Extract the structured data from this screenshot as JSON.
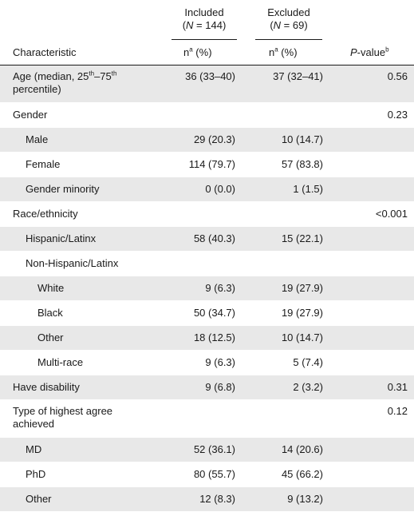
{
  "header": {
    "included_line1": "Included",
    "included_line2": "(N = 144)",
    "excluded_line1": "Excluded",
    "excluded_line2": "(N = 69)",
    "col_characteristic": "Characteristic",
    "col_n_prefix": "n",
    "col_n_sup": "a",
    "col_n_suffix": " (%)",
    "col_p": "P",
    "col_p_suffix": "-value",
    "col_p_sup": "b"
  },
  "rows": [
    {
      "label": "Age (median, 25",
      "sup1": "th",
      "mid": "–75",
      "sup2": "th",
      "label2": "percentile)",
      "inc": "36 (33–40)",
      "exc": "37 (32–41)",
      "p": "0.56",
      "indent": 0,
      "shaded": true,
      "two_line": true
    },
    {
      "label": "Gender",
      "inc": "",
      "exc": "",
      "p": "0.23",
      "indent": 0,
      "shaded": false
    },
    {
      "label": "Male",
      "inc": "29 (20.3)",
      "exc": "10 (14.7)",
      "p": "",
      "indent": 1,
      "shaded": true
    },
    {
      "label": "Female",
      "inc": "114 (79.7)",
      "exc": "57 (83.8)",
      "p": "",
      "indent": 1,
      "shaded": false
    },
    {
      "label": "Gender minority",
      "inc": "0 (0.0)",
      "exc": "1 (1.5)",
      "p": "",
      "indent": 1,
      "shaded": true
    },
    {
      "label": "Race/ethnicity",
      "inc": "",
      "exc": "",
      "p": "<0.001",
      "indent": 0,
      "shaded": false
    },
    {
      "label": "Hispanic/Latinx",
      "inc": "58 (40.3)",
      "exc": "15 (22.1)",
      "p": "",
      "indent": 1,
      "shaded": true
    },
    {
      "label": "Non-Hispanic/Latinx",
      "inc": "",
      "exc": "",
      "p": "",
      "indent": 1,
      "shaded": false
    },
    {
      "label": "White",
      "inc": "9 (6.3)",
      "exc": "19 (27.9)",
      "p": "",
      "indent": 2,
      "shaded": true
    },
    {
      "label": "Black",
      "inc": "50 (34.7)",
      "exc": "19 (27.9)",
      "p": "",
      "indent": 2,
      "shaded": false
    },
    {
      "label": "Other",
      "inc": "18 (12.5)",
      "exc": "10 (14.7)",
      "p": "",
      "indent": 2,
      "shaded": true
    },
    {
      "label": "Multi-race",
      "inc": "9 (6.3)",
      "exc": "5 (7.4)",
      "p": "",
      "indent": 2,
      "shaded": false
    },
    {
      "label": "Have disability",
      "inc": "9 (6.8)",
      "exc": "2 (3.2)",
      "p": "0.31",
      "indent": 0,
      "shaded": true
    },
    {
      "label": "Type of highest agree",
      "label2": "achieved",
      "inc": "",
      "exc": "",
      "p": "0.12",
      "indent": 0,
      "shaded": false,
      "two_line": true
    },
    {
      "label": "MD",
      "inc": "52 (36.1)",
      "exc": "14 (20.6)",
      "p": "",
      "indent": 1,
      "shaded": true
    },
    {
      "label": "PhD",
      "inc": "80 (55.7)",
      "exc": "45 (66.2)",
      "p": "",
      "indent": 1,
      "shaded": false
    },
    {
      "label": "Other",
      "inc": "12 (8.3)",
      "exc": "9 (13.2)",
      "p": "",
      "indent": 1,
      "shaded": true
    }
  ]
}
